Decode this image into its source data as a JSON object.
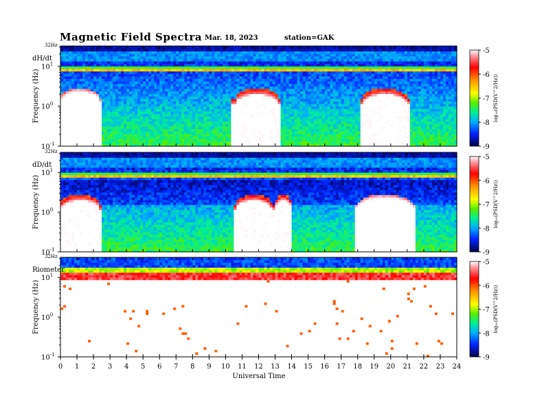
{
  "header": {
    "title": "Magnetic  Field  Spectra",
    "date": "Mar. 18, 2023",
    "station": "station=GAK"
  },
  "chart_data": {
    "type": "heatmap",
    "xlabel": "Universal Time",
    "x_ticks": [
      "0",
      "1",
      "2",
      "3",
      "4",
      "5",
      "6",
      "7",
      "8",
      "9",
      "10",
      "11",
      "12",
      "13",
      "14",
      "15",
      "16",
      "17",
      "18",
      "19",
      "20",
      "21",
      "22",
      "23",
      "24"
    ],
    "xlim": [
      0,
      24
    ],
    "ylabel": "Frequency  (Hz)",
    "y_scale": "log",
    "ylim": [
      0.1,
      32
    ],
    "top_label": "32Hz",
    "y_ticks": [
      {
        "value": 10,
        "label": "10",
        "exp": "1"
      },
      {
        "value": 1,
        "label": "10",
        "exp": "0"
      },
      {
        "value": 0.1,
        "label": "10",
        "exp": "-1"
      }
    ],
    "colorbar": {
      "label": "log₁₀(PSD(V^2/Hz))",
      "ticks": [
        "-5",
        "-6",
        "-7",
        "-8",
        "-9"
      ],
      "range": [
        -9,
        -5
      ],
      "colors": [
        "#000066",
        "#0000ff",
        "#00aaff",
        "#00ff88",
        "#44dd00",
        "#ffff00",
        "#ff8800",
        "#ff0000",
        "#ff6688",
        "#ffffff"
      ]
    },
    "panels": [
      {
        "name": "dH/dt",
        "description_values": {
          "quiet_band_hz": [
            1.5,
            10
          ],
          "pulsation_events_ut": [
            [
              10.6,
              13.2
            ],
            [
              18.3,
              21.0
            ],
            [
              0.0,
              2.4
            ]
          ],
          "line_hz": 8
        }
      },
      {
        "name": "dD/dt",
        "description_values": {
          "quiet_band_hz": [
            1.5,
            10
          ],
          "pulsation_events_ut": [
            [
              10.6,
              12.8
            ],
            [
              13.0,
              14.0
            ],
            [
              18.0,
              21.3
            ],
            [
              0.0,
              2.4
            ]
          ],
          "line_hz": 8
        }
      },
      {
        "name": "Riometer",
        "description_values": {
          "band_hz": [
            10,
            32
          ]
        }
      }
    ]
  }
}
